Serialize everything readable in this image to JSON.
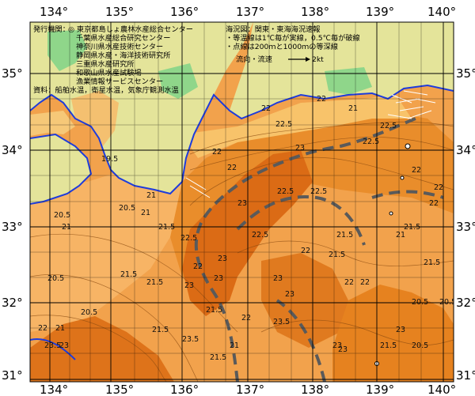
{
  "map": {
    "lon_labels": [
      "134°",
      "135°",
      "136°",
      "137°",
      "138°",
      "139°",
      "140°"
    ],
    "lat_labels": [
      "35°",
      "34°",
      "33°",
      "32°",
      "31°"
    ],
    "publisher": {
      "heading": "発行機関：",
      "lines": [
        "◎ 東京都島しょ農林水産総合センター",
        "千葉県水産総合研究センター",
        "神奈川県水産技術センター",
        "静岡県水産・海洋技術研究所",
        "三重県水産研究所",
        "和歌山県水産試験場",
        "漁業情報サービスセンター"
      ],
      "source": "資料：船舶水温，衛星水温，気象庁観測水温"
    },
    "chart_info": {
      "title": "海況図：関東・東海海況速報",
      "isotherm_note": "・等温線は1℃毎が実線，0.5℃毎が破線",
      "depth_note": "・点線は200ｍと1000ｍの等深線",
      "current_label": "流向・流速",
      "current_scale": "2kt"
    },
    "isotherm_labels": [
      "19.5",
      "20.5",
      "21",
      "20.5",
      "21",
      "21.5",
      "20.5",
      "21",
      "22.5",
      "22",
      "22",
      "22",
      "22.5",
      "23",
      "22.5",
      "22.5",
      "23",
      "22",
      "22.5",
      "21.5",
      "22",
      "22.5",
      "22",
      "21.5",
      "23",
      "23",
      "23",
      "23.5",
      "23",
      "23",
      "22",
      "20.5",
      "21.5",
      "21",
      "22",
      "21.5",
      "23",
      "21.5",
      "20.5",
      "21",
      "22",
      "21.5",
      "23.5",
      "23",
      "22",
      "21",
      "23",
      "22",
      "21.5",
      "21.5",
      "20.5",
      "22",
      "22.5",
      "21",
      "21.5",
      "22",
      "20.5",
      "23",
      "23.5",
      "21.5"
    ],
    "colors": {
      "land": "#e6e6a0",
      "coast_blue": "#1e3cdc",
      "sst_warm": "#e8720f",
      "sst_mid": "#f3a04a",
      "sst_cool": "#fbc878",
      "kuroshio": "#5a5a5a",
      "grid": "#000000"
    }
  }
}
